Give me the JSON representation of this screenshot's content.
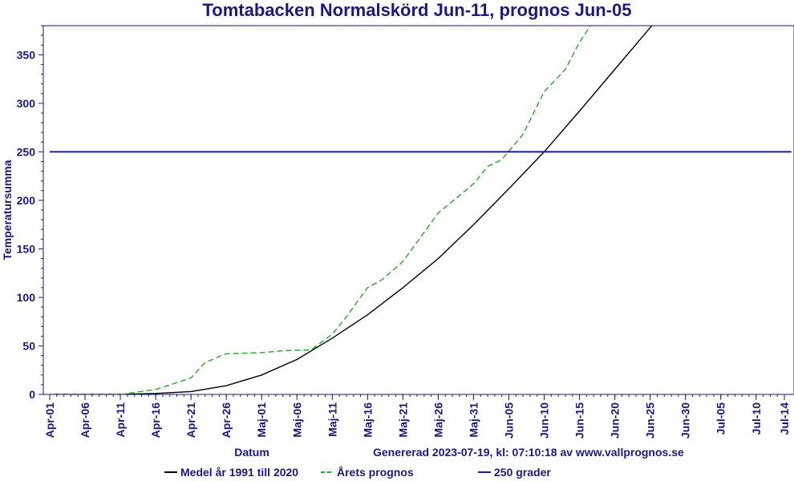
{
  "chart_data": {
    "type": "line",
    "title": "Tomtabacken Normalskörd Jun-11, prognos Jun-05",
    "xlabel": "Datum",
    "ylabel": "Temperatursumma",
    "ylim": [
      0,
      380
    ],
    "yticks": [
      0,
      50,
      100,
      150,
      200,
      250,
      300,
      350
    ],
    "xlim": [
      "2023-04-01",
      "2023-07-15"
    ],
    "xticks": [
      {
        "date": "2023-04-01",
        "label": "Apr-01"
      },
      {
        "date": "2023-04-06",
        "label": "Apr-06"
      },
      {
        "date": "2023-04-11",
        "label": "Apr-11"
      },
      {
        "date": "2023-04-16",
        "label": "Apr-16"
      },
      {
        "date": "2023-04-21",
        "label": "Apr-21"
      },
      {
        "date": "2023-04-26",
        "label": "Apr-26"
      },
      {
        "date": "2023-05-01",
        "label": "Maj-01"
      },
      {
        "date": "2023-05-06",
        "label": "Maj-06"
      },
      {
        "date": "2023-05-11",
        "label": "Maj-11"
      },
      {
        "date": "2023-05-16",
        "label": "Maj-16"
      },
      {
        "date": "2023-05-21",
        "label": "Maj-21"
      },
      {
        "date": "2023-05-26",
        "label": "Maj-26"
      },
      {
        "date": "2023-05-31",
        "label": "Maj-31"
      },
      {
        "date": "2023-06-05",
        "label": "Jun-05"
      },
      {
        "date": "2023-06-10",
        "label": "Jun-10"
      },
      {
        "date": "2023-06-15",
        "label": "Jun-15"
      },
      {
        "date": "2023-06-20",
        "label": "Jun-20"
      },
      {
        "date": "2023-06-25",
        "label": "Jun-25"
      },
      {
        "date": "2023-06-30",
        "label": "Jun-30"
      },
      {
        "date": "2023-07-05",
        "label": "Jul-05"
      },
      {
        "date": "2023-07-10",
        "label": "Jul-10"
      },
      {
        "date": "2023-07-14",
        "label": "Jul-14"
      }
    ],
    "grid": false,
    "legend_position": "bottom",
    "series": [
      {
        "name": "Medel år 1991 till 2020",
        "color": "#000000",
        "style": "solid",
        "points": [
          [
            "2023-04-01",
            0
          ],
          [
            "2023-04-11",
            0
          ],
          [
            "2023-04-16",
            1
          ],
          [
            "2023-04-21",
            3
          ],
          [
            "2023-04-26",
            9
          ],
          [
            "2023-05-01",
            20
          ],
          [
            "2023-05-06",
            36
          ],
          [
            "2023-05-11",
            58
          ],
          [
            "2023-05-16",
            82
          ],
          [
            "2023-05-21",
            110
          ],
          [
            "2023-05-26",
            140
          ],
          [
            "2023-05-31",
            175
          ],
          [
            "2023-06-05",
            212
          ],
          [
            "2023-06-10",
            250
          ],
          [
            "2023-06-15",
            292
          ],
          [
            "2023-06-20",
            335
          ],
          [
            "2023-06-25",
            378
          ],
          [
            "2023-06-27",
            395
          ]
        ]
      },
      {
        "name": "Årets prognos",
        "color": "#22aa22",
        "style": "dashed",
        "points": [
          [
            "2023-04-01",
            0
          ],
          [
            "2023-04-11",
            0
          ],
          [
            "2023-04-16",
            5
          ],
          [
            "2023-04-21",
            17
          ],
          [
            "2023-04-23",
            33
          ],
          [
            "2023-04-26",
            42
          ],
          [
            "2023-05-01",
            43
          ],
          [
            "2023-05-04",
            45
          ],
          [
            "2023-05-08",
            46
          ],
          [
            "2023-05-11",
            62
          ],
          [
            "2023-05-13",
            80
          ],
          [
            "2023-05-16",
            110
          ],
          [
            "2023-05-18",
            118
          ],
          [
            "2023-05-21",
            137
          ],
          [
            "2023-05-26",
            187
          ],
          [
            "2023-05-31",
            217
          ],
          [
            "2023-06-02",
            235
          ],
          [
            "2023-06-04",
            242
          ],
          [
            "2023-06-07",
            268
          ],
          [
            "2023-06-10",
            312
          ],
          [
            "2023-06-13",
            335
          ],
          [
            "2023-06-15",
            363
          ],
          [
            "2023-06-17",
            385
          ]
        ]
      },
      {
        "name": "250 grader",
        "color": "#1a1a9a",
        "style": "solid",
        "points": [
          [
            "2023-04-01",
            250
          ],
          [
            "2023-07-15",
            250
          ]
        ]
      }
    ]
  },
  "footer": {
    "generated": "Genererad 2023-07-19, kl: 07:10:18 av www.vallprognos.se"
  }
}
